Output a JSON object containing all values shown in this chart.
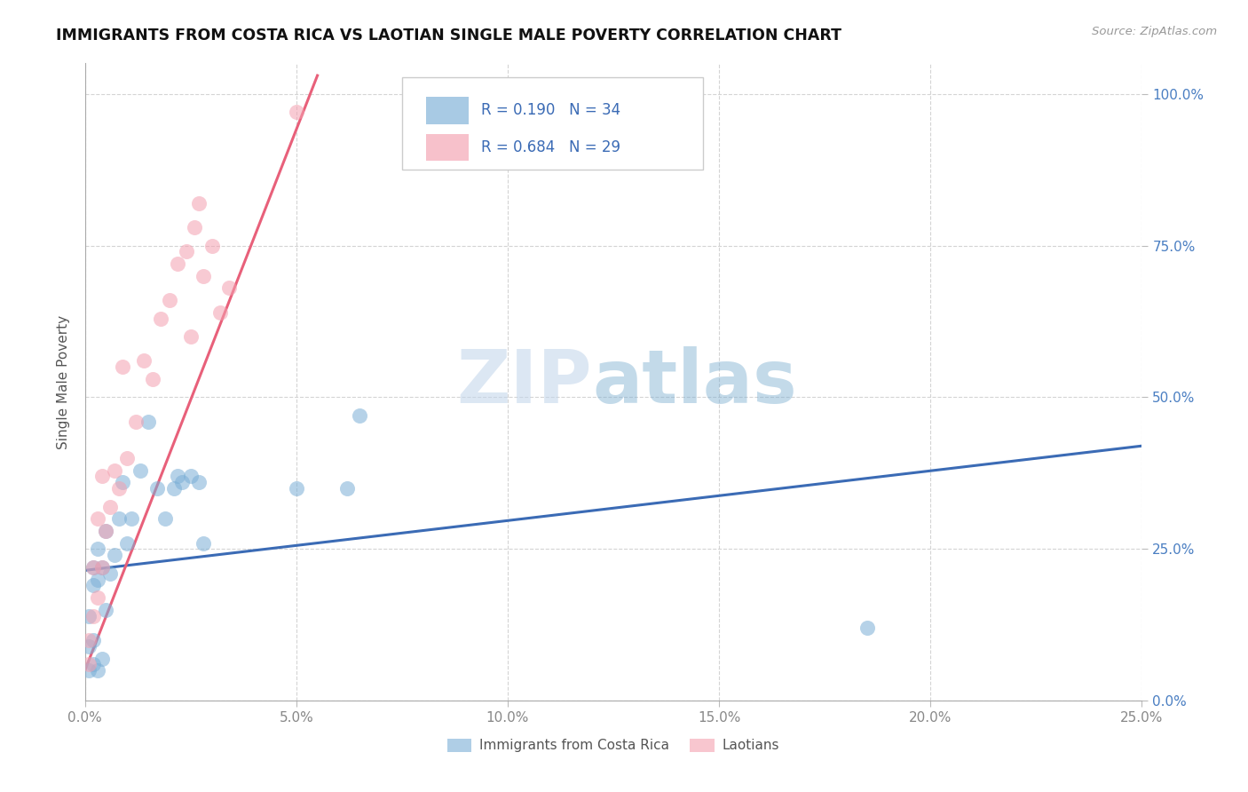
{
  "title": "IMMIGRANTS FROM COSTA RICA VS LAOTIAN SINGLE MALE POVERTY CORRELATION CHART",
  "source": "Source: ZipAtlas.com",
  "ylabel": "Single Male Poverty",
  "xlim": [
    0.0,
    0.25
  ],
  "ylim": [
    0.0,
    1.05
  ],
  "xticks": [
    0.0,
    0.05,
    0.1,
    0.15,
    0.2,
    0.25
  ],
  "yticks": [
    0.0,
    0.25,
    0.5,
    0.75,
    1.0
  ],
  "xtick_labels": [
    "0.0%",
    "5.0%",
    "10.0%",
    "15.0%",
    "20.0%",
    "25.0%"
  ],
  "ytick_labels_right": [
    "0.0%",
    "25.0%",
    "50.0%",
    "75.0%",
    "100.0%"
  ],
  "legend_blue_label": "Immigrants from Costa Rica",
  "legend_pink_label": "Laotians",
  "r_blue_text": "R = 0.190",
  "n_blue_text": "N = 34",
  "r_pink_text": "R = 0.684",
  "n_pink_text": "N = 29",
  "blue_color": "#7aaed6",
  "pink_color": "#f4a0b0",
  "blue_line_color": "#3b6bb5",
  "pink_line_color": "#e8607a",
  "blue_scatter_x": [
    0.001,
    0.001,
    0.001,
    0.002,
    0.002,
    0.002,
    0.002,
    0.003,
    0.003,
    0.003,
    0.004,
    0.004,
    0.005,
    0.005,
    0.006,
    0.007,
    0.008,
    0.009,
    0.01,
    0.011,
    0.013,
    0.015,
    0.017,
    0.019,
    0.021,
    0.022,
    0.023,
    0.025,
    0.027,
    0.028,
    0.05,
    0.062,
    0.065,
    0.185
  ],
  "blue_scatter_y": [
    0.05,
    0.09,
    0.14,
    0.06,
    0.1,
    0.19,
    0.22,
    0.05,
    0.2,
    0.25,
    0.07,
    0.22,
    0.15,
    0.28,
    0.21,
    0.24,
    0.3,
    0.36,
    0.26,
    0.3,
    0.38,
    0.46,
    0.35,
    0.3,
    0.35,
    0.37,
    0.36,
    0.37,
    0.36,
    0.26,
    0.35,
    0.35,
    0.47,
    0.12
  ],
  "pink_scatter_x": [
    0.001,
    0.001,
    0.002,
    0.002,
    0.003,
    0.003,
    0.004,
    0.004,
    0.005,
    0.006,
    0.007,
    0.008,
    0.009,
    0.01,
    0.012,
    0.014,
    0.016,
    0.018,
    0.02,
    0.022,
    0.024,
    0.025,
    0.026,
    0.027,
    0.028,
    0.03,
    0.032,
    0.034,
    0.05
  ],
  "pink_scatter_y": [
    0.06,
    0.1,
    0.14,
    0.22,
    0.17,
    0.3,
    0.22,
    0.37,
    0.28,
    0.32,
    0.38,
    0.35,
    0.55,
    0.4,
    0.46,
    0.56,
    0.53,
    0.63,
    0.66,
    0.72,
    0.74,
    0.6,
    0.78,
    0.82,
    0.7,
    0.75,
    0.64,
    0.68,
    0.97
  ],
  "blue_line_x": [
    0.0,
    0.25
  ],
  "blue_line_y": [
    0.215,
    0.42
  ],
  "pink_line_x": [
    0.0,
    0.055
  ],
  "pink_line_y": [
    0.05,
    1.03
  ],
  "grid_color": "#d0d0d0",
  "title_color": "#111111",
  "axis_label_color": "#555555",
  "right_tick_color": "#4a7ec2",
  "bottom_tick_color": "#888888"
}
